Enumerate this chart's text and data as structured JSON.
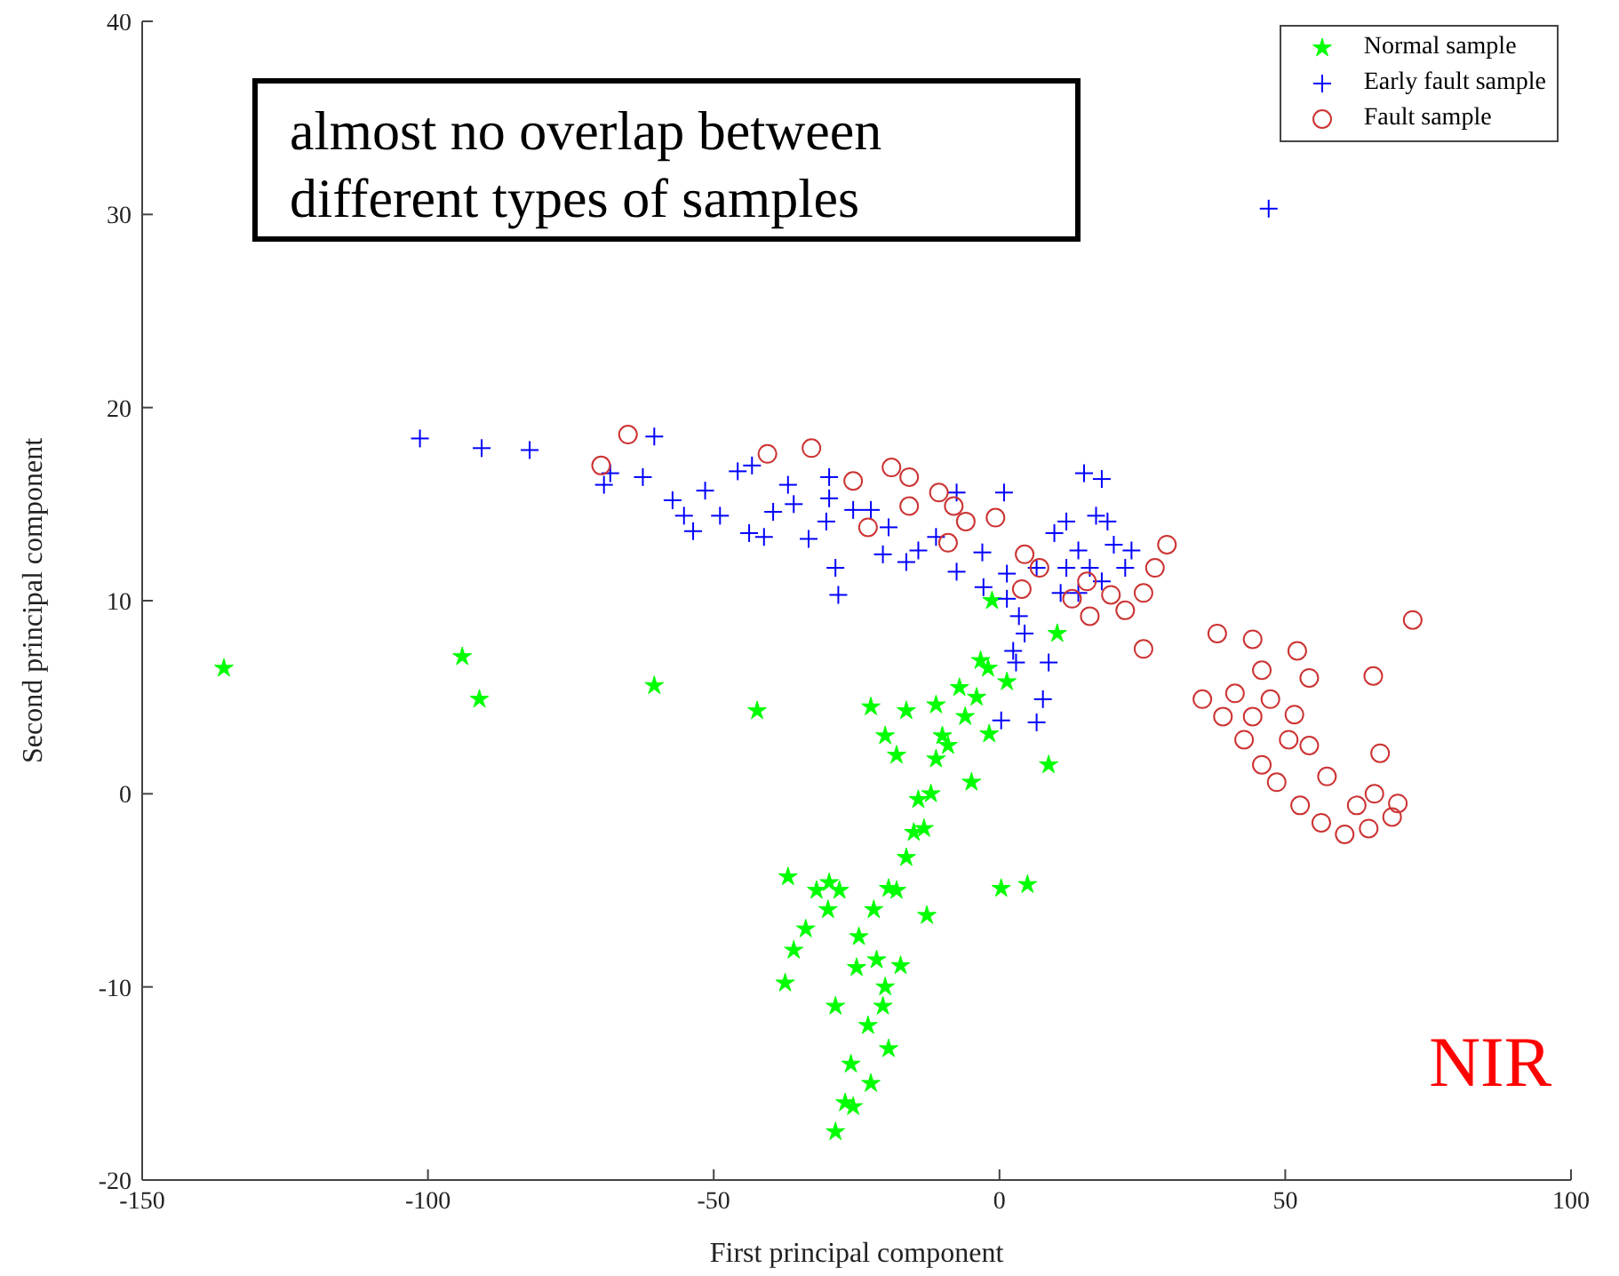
{
  "chart_data": {
    "type": "scatter",
    "xlabel": "First principal component",
    "ylabel": "Second principal component",
    "xlim": [
      -150,
      100
    ],
    "ylim": [
      -20,
      40
    ],
    "xticks": [
      -150,
      -100,
      -50,
      0,
      50,
      100
    ],
    "yticks": [
      -20,
      -10,
      0,
      10,
      20,
      30,
      40
    ],
    "grid": false,
    "legend": "top right",
    "annotations": [
      "almost no overlap between different types of samples",
      "NIR"
    ],
    "series": [
      {
        "name": "Normal sample",
        "color": "#00ff00",
        "marker": "star",
        "x": [
          -135.7,
          -94,
          -91,
          -60.4,
          -42.4,
          -3.3,
          -11.1,
          -22.5,
          -16.3,
          1.3,
          -1.8,
          -4.9,
          -11.1,
          -14.2,
          -13.2,
          -16.3,
          -19.4,
          -29.8,
          -37,
          -33.9,
          -36,
          -37.5,
          -24.6,
          -21.5,
          -17.3,
          -28.7,
          -20.4,
          -19.4,
          -22.5,
          -25.6,
          -28.7,
          -12.7,
          0.3,
          4.9,
          8.6,
          -7,
          -9,
          -1.3,
          10.1,
          -10,
          -12,
          -15,
          -18,
          -22,
          -25,
          -20,
          -23,
          -26,
          -27,
          -30,
          -32,
          -28,
          -6,
          -4,
          -2,
          -20,
          -18
        ],
        "values": [
          6.5,
          7.1,
          4.9,
          5.6,
          4.3,
          6.9,
          4.6,
          4.5,
          4.3,
          5.8,
          3.1,
          0.6,
          1.8,
          -0.3,
          -1.8,
          -3.3,
          -4.9,
          -4.6,
          -4.3,
          -7,
          -8.1,
          -9.8,
          -7.4,
          -8.6,
          -8.9,
          -11,
          -11,
          -13.2,
          -15,
          -16.2,
          -17.5,
          -6.3,
          -4.9,
          -4.7,
          1.5,
          5.5,
          2.5,
          10,
          8.3,
          3,
          0,
          -2,
          -5,
          -6,
          -9,
          -10,
          -12,
          -14,
          -16,
          -6,
          -5,
          -5,
          4,
          5,
          6.5,
          3,
          2
        ]
      },
      {
        "name": "Early fault sample",
        "color": "#0000ff",
        "marker": "cross",
        "x": [
          -101.4,
          -90.6,
          -82.2,
          -60.4,
          -68.1,
          -62.4,
          -69.2,
          -57.2,
          -51.5,
          -55.2,
          -53.6,
          -48.9,
          -45.8,
          -43.3,
          -43.8,
          -41.2,
          -39.6,
          -37,
          -36,
          -29.8,
          -29.8,
          -30.3,
          -33.4,
          -28.7,
          -28.2,
          -25.6,
          -22.5,
          -19.4,
          -20.4,
          -16.3,
          -14.2,
          -11.1,
          -7.5,
          0.8,
          -7.5,
          -2.8,
          1.3,
          1.3,
          3.4,
          4.4,
          2.4,
          2.9,
          8.6,
          7.6,
          6.5,
          0.3,
          14.8,
          17.9,
          11.7,
          16.9,
          18.9,
          9.6,
          13.8,
          11.7,
          15.8,
          13.8,
          10.7,
          23.1,
          22,
          20,
          17.9,
          6.5,
          -3,
          47.1
        ],
        "values": [
          18.4,
          17.9,
          17.8,
          18.5,
          16.6,
          16.4,
          16,
          15.2,
          15.7,
          14.4,
          13.6,
          14.4,
          16.7,
          17,
          13.5,
          13.3,
          14.6,
          16,
          15,
          16.4,
          15.3,
          14.1,
          13.2,
          11.7,
          10.3,
          14.7,
          14.7,
          13.8,
          12.4,
          12,
          12.6,
          13.3,
          15.6,
          15.6,
          11.5,
          10.7,
          11.4,
          10.1,
          9.2,
          8.3,
          7.4,
          6.8,
          6.8,
          4.9,
          3.7,
          3.8,
          16.6,
          16.3,
          14.1,
          14.4,
          14.1,
          13.5,
          12.6,
          11.7,
          11.7,
          10.4,
          10.4,
          12.6,
          11.7,
          12.9,
          11,
          11.7,
          12.5,
          30.3
        ]
      },
      {
        "name": "Fault sample",
        "color": "#cc3333",
        "marker": "circle",
        "x": [
          -65,
          -69.7,
          -40.6,
          -32.9,
          -25.6,
          -18.9,
          -15.8,
          -23,
          -15.8,
          -10.6,
          -8,
          -5.9,
          -0.7,
          -9,
          4.4,
          7,
          3.9,
          12.7,
          15.3,
          15.8,
          19.5,
          22,
          25.2,
          27.2,
          29.3,
          25.2,
          38.1,
          44.3,
          35.5,
          39.1,
          41.2,
          45.9,
          47.4,
          52.1,
          54.2,
          51.6,
          42.8,
          45.9,
          48.5,
          50.6,
          54.2,
          57.3,
          52.6,
          56.3,
          60.4,
          64.6,
          68.7,
          65.6,
          62.5,
          69.7,
          72.3,
          65.4,
          66.6,
          44.3
        ],
        "values": [
          18.6,
          17,
          17.6,
          17.9,
          16.2,
          16.9,
          16.4,
          13.8,
          14.9,
          15.6,
          14.9,
          14.1,
          14.3,
          13,
          12.4,
          11.7,
          10.6,
          10.1,
          11,
          9.2,
          10.3,
          9.5,
          10.4,
          11.7,
          12.9,
          7.5,
          8.3,
          8,
          4.9,
          4,
          5.2,
          6.4,
          4.9,
          7.4,
          6,
          4.1,
          2.8,
          1.5,
          0.6,
          2.8,
          2.5,
          0.9,
          -0.6,
          -1.5,
          -2.1,
          -1.8,
          -1.2,
          0,
          -0.6,
          -0.5,
          9,
          6.1,
          2.1,
          4
        ]
      }
    ]
  }
}
